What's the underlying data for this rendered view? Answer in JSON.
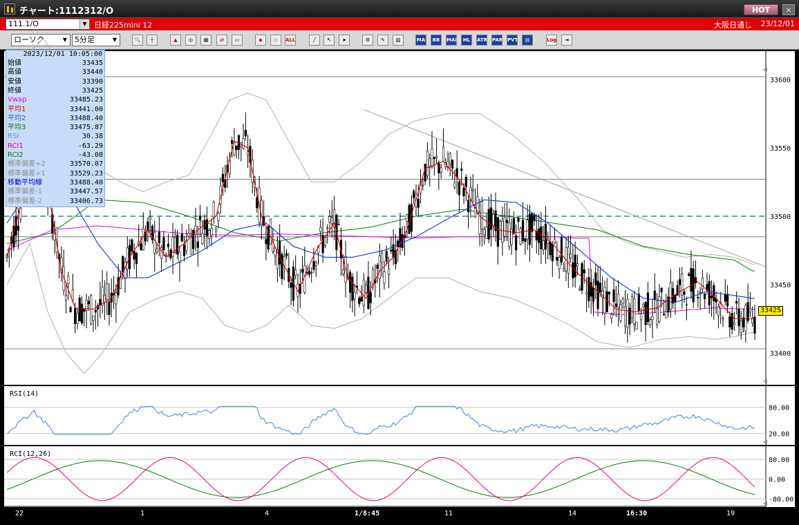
{
  "window": {
    "title": "チャート:1112312/O",
    "hot_label": "HOT",
    "close_label": "×"
  },
  "info_bar": {
    "symbol": "111.1/O",
    "market": "日経225mini 12",
    "session": "大阪日通し",
    "date": "23/12/01"
  },
  "toolbar": {
    "chart_type": "ローソク",
    "interval": "5分足",
    "text_buttons": [
      "ALL",
      "MA",
      "BB",
      "MAE",
      "HL",
      "ATR",
      "PARA",
      "PVT",
      "Log"
    ]
  },
  "data_panel": {
    "datetime": "2023/12/01  10:05:00",
    "rows": [
      {
        "label": "始値",
        "value": "33435",
        "color": "#000000"
      },
      {
        "label": "高値",
        "value": "33440",
        "color": "#000000"
      },
      {
        "label": "安値",
        "value": "33390",
        "color": "#000000"
      },
      {
        "label": "終値",
        "value": "33425",
        "color": "#000000"
      },
      {
        "label": "Vwap",
        "value": "33485.23",
        "color": "#e000e0"
      },
      {
        "label": "平均1",
        "value": "33441.00",
        "color": "#e00000"
      },
      {
        "label": "平均2",
        "value": "33488.40",
        "color": "#2060e0"
      },
      {
        "label": "平均3",
        "value": "33475.87",
        "color": "#008000"
      },
      {
        "label": "RSI",
        "value": "30.38",
        "color": "#6090e0"
      },
      {
        "label": "RCI1",
        "value": "-63.29",
        "color": "#e00080"
      },
      {
        "label": "RCI2",
        "value": "-43.08",
        "color": "#008000"
      },
      {
        "label": "標準偏差+2",
        "value": "33570.07",
        "color": "#909090"
      },
      {
        "label": "標準偏差+1",
        "value": "33529.23",
        "color": "#909090"
      },
      {
        "label": "移動平均線",
        "value": "33488.40",
        "color": "#0000c0"
      },
      {
        "label": "標準偏差-1",
        "value": "33447.57",
        "color": "#909090"
      },
      {
        "label": "標準偏差-2",
        "value": "33406.73",
        "color": "#909090"
      }
    ]
  },
  "colors": {
    "candle": "#000000",
    "vwap": "#e000e0",
    "ma1": "#e00000",
    "ma2": "#1030e0",
    "ma3": "#008000",
    "bollinger": "#b0b0b0",
    "rsi": "#4080e0",
    "rci1": "#e00080",
    "rci2": "#008000",
    "hline": "#808080",
    "dashed": "#007080"
  },
  "chart_data": {
    "type": "candlestick",
    "price_axis": {
      "ticks": [
        33400,
        33450,
        33500,
        33550,
        33600
      ],
      "range": [
        33375,
        33625
      ]
    },
    "x_labels": [
      "22",
      "1",
      "4",
      "1/8:45",
      "11",
      "14",
      "16:30",
      "19"
    ],
    "last_price": "33425",
    "horizontal_lines": [
      33602,
      33527,
      33485,
      33403
    ],
    "dashed_line": 33500,
    "trendline": [
      {
        "bar": 97,
        "price": 33578
      },
      {
        "bar": 188,
        "price": 33463
      }
    ],
    "candles_per_chart": 188,
    "ma1_keys": [
      [
        0,
        33470
      ],
      [
        12,
        33545
      ],
      [
        18,
        33520
      ],
      [
        24,
        33460
      ],
      [
        30,
        33433
      ],
      [
        38,
        33432
      ],
      [
        46,
        33440
      ],
      [
        54,
        33470
      ],
      [
        62,
        33490
      ],
      [
        70,
        33470
      ],
      [
        78,
        33480
      ],
      [
        84,
        33490
      ],
      [
        92,
        33500
      ],
      [
        100,
        33555
      ],
      [
        106,
        33550
      ],
      [
        112,
        33500
      ],
      [
        120,
        33470
      ],
      [
        128,
        33445
      ],
      [
        136,
        33475
      ],
      [
        144,
        33495
      ],
      [
        150,
        33455
      ],
      [
        158,
        33440
      ],
      [
        164,
        33460
      ],
      [
        170,
        33470
      ],
      [
        176,
        33490
      ],
      [
        184,
        33535
      ],
      [
        192,
        33540
      ],
      [
        200,
        33525
      ],
      [
        208,
        33500
      ],
      [
        216,
        33490
      ],
      [
        224,
        33488
      ],
      [
        232,
        33490
      ],
      [
        240,
        33480
      ],
      [
        250,
        33460
      ],
      [
        260,
        33445
      ],
      [
        268,
        33432
      ],
      [
        276,
        33430
      ],
      [
        286,
        33433
      ],
      [
        296,
        33445
      ],
      [
        304,
        33452
      ],
      [
        312,
        33440
      ],
      [
        320,
        33425
      ],
      [
        328,
        33425
      ]
    ],
    "ma2_keys": [
      [
        0,
        33495
      ],
      [
        14,
        33530
      ],
      [
        26,
        33520
      ],
      [
        40,
        33480
      ],
      [
        52,
        33455
      ],
      [
        62,
        33455
      ],
      [
        74,
        33465
      ],
      [
        86,
        33475
      ],
      [
        100,
        33490
      ],
      [
        114,
        33495
      ],
      [
        126,
        33478
      ],
      [
        140,
        33470
      ],
      [
        152,
        33470
      ],
      [
        166,
        33475
      ],
      [
        180,
        33485
      ],
      [
        196,
        33500
      ],
      [
        210,
        33512
      ],
      [
        224,
        33510
      ],
      [
        238,
        33495
      ],
      [
        252,
        33475
      ],
      [
        266,
        33455
      ],
      [
        280,
        33440
      ],
      [
        294,
        33437
      ],
      [
        308,
        33445
      ],
      [
        320,
        33442
      ],
      [
        328,
        33440
      ]
    ],
    "ma3_keys": [
      [
        0,
        33480
      ],
      [
        20,
        33488
      ],
      [
        40,
        33512
      ],
      [
        60,
        33510
      ],
      [
        80,
        33500
      ],
      [
        100,
        33488
      ],
      [
        120,
        33482
      ],
      [
        140,
        33488
      ],
      [
        160,
        33492
      ],
      [
        180,
        33500
      ],
      [
        200,
        33505
      ],
      [
        220,
        33500
      ],
      [
        240,
        33495
      ],
      [
        260,
        33490
      ],
      [
        280,
        33478
      ],
      [
        300,
        33472
      ],
      [
        320,
        33468
      ],
      [
        328,
        33460
      ]
    ],
    "vwap_keys": [
      [
        0,
        33475
      ],
      [
        20,
        33490
      ],
      [
        40,
        33493
      ],
      [
        60,
        33490
      ],
      [
        80,
        33487
      ],
      [
        100,
        33486
      ],
      [
        120,
        33487
      ],
      [
        140,
        33486
      ],
      [
        160,
        33485
      ],
      [
        180,
        33484
      ],
      [
        200,
        33485
      ],
      [
        220,
        33485
      ],
      [
        240,
        33485
      ],
      [
        250,
        33484
      ],
      [
        256,
        33484
      ],
      [
        258,
        33430
      ],
      [
        270,
        33428
      ],
      [
        290,
        33430
      ],
      [
        310,
        33433
      ],
      [
        328,
        33432
      ]
    ],
    "bb_upper_keys": [
      [
        0,
        33545
      ],
      [
        10,
        33620
      ],
      [
        16,
        33630
      ],
      [
        24,
        33610
      ],
      [
        32,
        33555
      ],
      [
        40,
        33535
      ],
      [
        50,
        33525
      ],
      [
        60,
        33518
      ],
      [
        70,
        33525
      ],
      [
        80,
        33530
      ],
      [
        90,
        33560
      ],
      [
        98,
        33585
      ],
      [
        106,
        33590
      ],
      [
        114,
        33585
      ],
      [
        124,
        33555
      ],
      [
        134,
        33525
      ],
      [
        144,
        33525
      ],
      [
        156,
        33540
      ],
      [
        168,
        33560
      ],
      [
        180,
        33570
      ],
      [
        194,
        33575
      ],
      [
        208,
        33575
      ],
      [
        222,
        33560
      ],
      [
        236,
        33540
      ],
      [
        250,
        33515
      ],
      [
        262,
        33490
      ],
      [
        274,
        33480
      ],
      [
        286,
        33475
      ],
      [
        298,
        33470
      ],
      [
        310,
        33472
      ],
      [
        320,
        33470
      ],
      [
        328,
        33465
      ]
    ],
    "bb_lower_keys": [
      [
        0,
        33450
      ],
      [
        10,
        33480
      ],
      [
        18,
        33430
      ],
      [
        26,
        33400
      ],
      [
        34,
        33385
      ],
      [
        42,
        33400
      ],
      [
        54,
        33430
      ],
      [
        66,
        33440
      ],
      [
        76,
        33445
      ],
      [
        86,
        33440
      ],
      [
        96,
        33420
      ],
      [
        106,
        33415
      ],
      [
        114,
        33420
      ],
      [
        124,
        33435
      ],
      [
        134,
        33420
      ],
      [
        144,
        33418
      ],
      [
        156,
        33425
      ],
      [
        168,
        33440
      ],
      [
        180,
        33455
      ],
      [
        194,
        33455
      ],
      [
        208,
        33445
      ],
      [
        222,
        33440
      ],
      [
        236,
        33430
      ],
      [
        248,
        33420
      ],
      [
        260,
        33408
      ],
      [
        274,
        33404
      ],
      [
        288,
        33410
      ],
      [
        300,
        33412
      ],
      [
        312,
        33410
      ],
      [
        320,
        33412
      ],
      [
        328,
        33415
      ]
    ],
    "rsi": {
      "label": "RSI(14)",
      "ticks": [
        80,
        20
      ],
      "range": [
        0,
        100
      ]
    },
    "rci": {
      "label": "RCI(12,26)",
      "ticks": [
        80,
        0,
        -80
      ],
      "range": [
        -100,
        100
      ]
    }
  }
}
